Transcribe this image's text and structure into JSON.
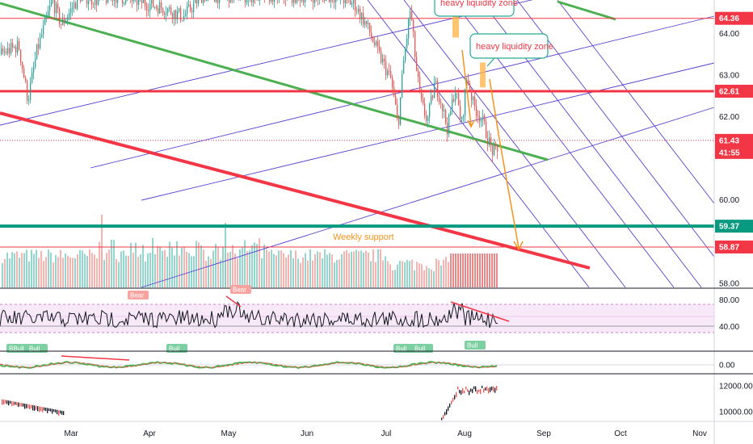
{
  "colors": {
    "up": "#26a69a",
    "down": "#ef5350",
    "resistance": "#f23645",
    "support": "#089981",
    "trend": "#4caf50",
    "channel": "#5b3fd1",
    "arrow": "#f7931a",
    "vol_up": "#7fcfc4",
    "vol_down": "#f4a7a3",
    "vol_highlight": "#e57373"
  },
  "chart_data": {
    "type": "candlestick",
    "x_ticks": [
      "Mar",
      "Apr",
      "May",
      "Jun",
      "Jul",
      "Aug",
      "Sep",
      "Oct",
      "Nov"
    ],
    "price_ticks": [
      64.0,
      63.0,
      62.0,
      60.0,
      58.0
    ],
    "price_tick_labels": [
      "64.00",
      "63.00",
      "62.00",
      "60.00",
      "58.00"
    ],
    "ylim": [
      57.9,
      64.8
    ],
    "levels": [
      {
        "label": "64.36",
        "value": 64.36,
        "style": "thin-red"
      },
      {
        "label": "62.61",
        "value": 62.61,
        "style": "thick-red"
      },
      {
        "label": "61.43",
        "value": 61.43,
        "style": "dotted-red"
      },
      {
        "label": "41:55",
        "value": 61.14,
        "style": "countdown"
      },
      {
        "label": "59.37",
        "value": 59.37,
        "style": "thick-support"
      },
      {
        "label": "58.87",
        "value": 58.87,
        "style": "thin-red"
      }
    ],
    "annotations": [
      "heavy liquidity zone",
      "heavy liquidity zone",
      "Weekly support"
    ],
    "price_path": [
      [
        0,
        63.5
      ],
      [
        0.03,
        63.7
      ],
      [
        0.045,
        62.4
      ],
      [
        0.06,
        63.6
      ],
      [
        0.085,
        64.8
      ],
      [
        0.1,
        64.2
      ],
      [
        0.13,
        64.9
      ],
      [
        0.16,
        64.8
      ],
      [
        0.19,
        64.9
      ],
      [
        0.27,
        64.6
      ],
      [
        0.3,
        64.4
      ],
      [
        0.33,
        64.9
      ],
      [
        0.55,
        64.9
      ],
      [
        0.58,
        64.7
      ],
      [
        0.6,
        64.2
      ],
      [
        0.62,
        63.5
      ],
      [
        0.64,
        62.9
      ],
      [
        0.652,
        61.8
      ],
      [
        0.66,
        63.2
      ],
      [
        0.672,
        64.6
      ],
      [
        0.682,
        63.1
      ],
      [
        0.69,
        62.3
      ],
      [
        0.7,
        61.9
      ],
      [
        0.712,
        62.8
      ],
      [
        0.72,
        62.5
      ],
      [
        0.733,
        61.7
      ],
      [
        0.745,
        62.7
      ],
      [
        0.756,
        61.8
      ],
      [
        0.765,
        63.0
      ],
      [
        0.775,
        62.3
      ],
      [
        0.79,
        61.9
      ],
      [
        0.805,
        61.2
      ],
      [
        0.815,
        61.1
      ]
    ],
    "rsi": {
      "ticks": [
        "80.00",
        "40.00"
      ],
      "tick_values": [
        80,
        40
      ],
      "band": [
        30,
        70
      ],
      "signals": [
        "BBull",
        "Bull",
        "Bear",
        "Bull",
        "Bear",
        "Bull",
        "Bull",
        "Bull"
      ]
    },
    "macd": {
      "ticks": [
        "0.00"
      ],
      "tick_values": [
        0
      ]
    },
    "open_interest": {
      "ticks": [
        "12000.00",
        "10000.00"
      ],
      "tick_values": [
        12000,
        10000
      ]
    }
  }
}
